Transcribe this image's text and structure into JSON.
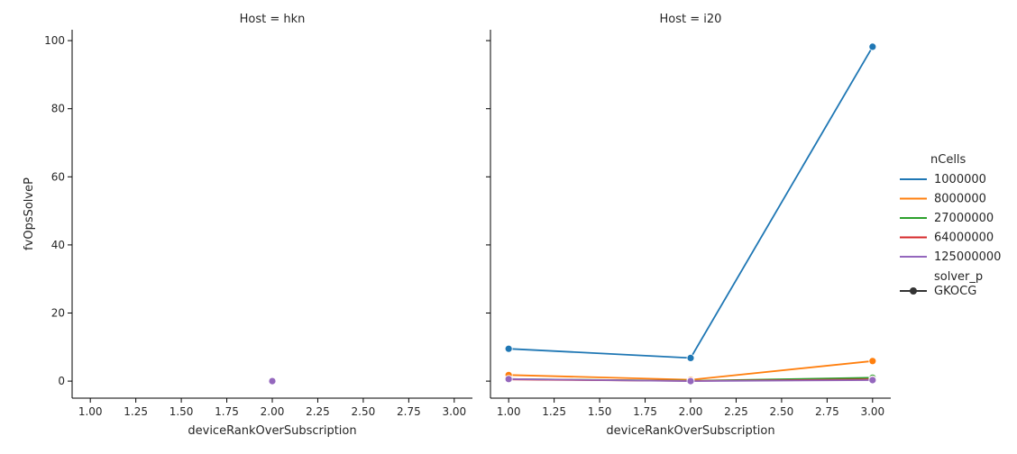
{
  "chart_data": {
    "type": "line",
    "ylabel": "fvOpsSolveP",
    "xlabel": "deviceRankOverSubscription",
    "xlim": [
      0.9,
      3.1
    ],
    "ylim": [
      -5.0,
      103.2
    ],
    "x_ticks": [
      "1.00",
      "1.25",
      "1.50",
      "1.75",
      "2.00",
      "2.25",
      "2.50",
      "2.75",
      "3.00"
    ],
    "y_ticks": [
      "0",
      "20",
      "40",
      "60",
      "80",
      "100"
    ],
    "grid": false,
    "legend": {
      "placement": "right",
      "hue_title": "nCells",
      "style_title": "solver_p",
      "style_entries": [
        "GKOCG"
      ]
    },
    "series_colors": {
      "1000000": "#1f77b4",
      "8000000": "#ff7f0e",
      "27000000": "#2ca02c",
      "64000000": "#d62728",
      "125000000": "#9467bd"
    },
    "panels": [
      {
        "title": "Host = hkn",
        "series": [
          {
            "name": "125000000",
            "x": [
              2.0
            ],
            "y": [
              0.0
            ]
          }
        ]
      },
      {
        "title": "Host = i20",
        "series": [
          {
            "name": "1000000",
            "x": [
              1.0,
              2.0,
              3.0
            ],
            "y": [
              9.5,
              6.8,
              98.2
            ]
          },
          {
            "name": "8000000",
            "x": [
              1.0,
              2.0,
              3.0
            ],
            "y": [
              1.8,
              0.4,
              5.9
            ]
          },
          {
            "name": "27000000",
            "x": [
              1.0,
              2.0,
              3.0
            ],
            "y": [
              0.6,
              0.1,
              1.0
            ]
          },
          {
            "name": "64000000",
            "x": [
              1.0,
              2.0,
              3.0
            ],
            "y": [
              0.5,
              0.05,
              0.5
            ]
          },
          {
            "name": "125000000",
            "x": [
              1.0,
              2.0,
              3.0
            ],
            "y": [
              0.6,
              0.0,
              0.3
            ]
          }
        ]
      }
    ]
  }
}
